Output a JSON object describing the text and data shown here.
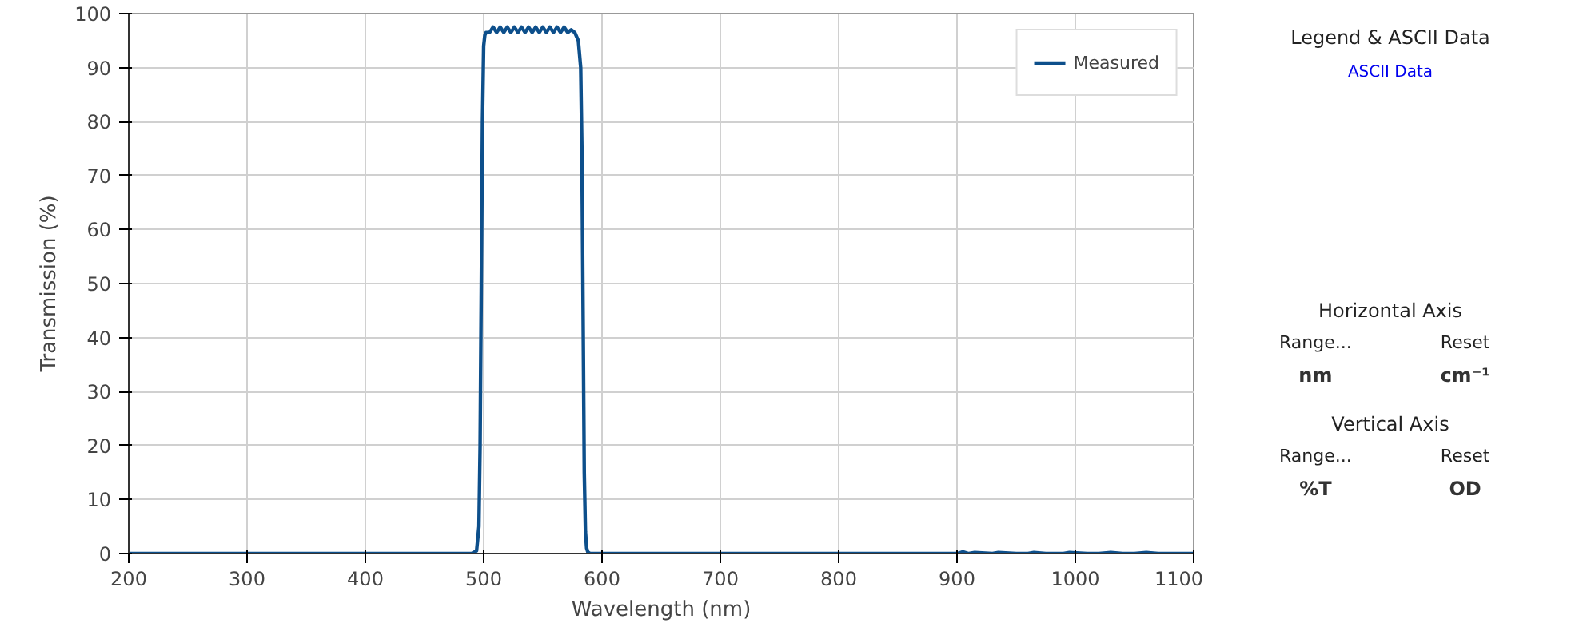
{
  "chart_data": [
    {
      "type": "line",
      "xlabel": "Wavelength (nm)",
      "ylabel": "Transmission (%)",
      "xlim": [
        200,
        1100
      ],
      "xticks": [
        200,
        300,
        400,
        500,
        600,
        700,
        800,
        900,
        1000,
        1100
      ],
      "ylim": [
        0,
        100
      ],
      "yticks": [
        0,
        10,
        20,
        30,
        40,
        50,
        60,
        70,
        80,
        90,
        100
      ],
      "grid": true,
      "legend": "top right",
      "series": [
        {
          "name": "Measured",
          "color": "#0d4f8b",
          "x": [
            200,
            300,
            400,
            480,
            490,
            494,
            496,
            497,
            498,
            499,
            500,
            501,
            502,
            505,
            508,
            511,
            514,
            517,
            520,
            523,
            526,
            529,
            532,
            535,
            538,
            541,
            544,
            547,
            550,
            553,
            556,
            559,
            562,
            565,
            568,
            571,
            574,
            577,
            580,
            582,
            583,
            584,
            585,
            586,
            587,
            588,
            590,
            600,
            700,
            800,
            880,
            900,
            905,
            910,
            915,
            930,
            935,
            950,
            960,
            965,
            975,
            990,
            995,
            1010,
            1020,
            1030,
            1040,
            1050,
            1060,
            1070,
            1100
          ],
          "values": [
            0,
            0,
            0,
            0,
            0,
            0.5,
            5,
            20,
            50,
            80,
            94,
            96,
            96.5,
            96.5,
            97.5,
            96.5,
            97.5,
            96.5,
            97.5,
            96.5,
            97.5,
            96.5,
            97.5,
            96.5,
            97.5,
            96.5,
            97.5,
            96.5,
            97.5,
            96.5,
            97.5,
            96.5,
            97.5,
            96.5,
            97.5,
            96.5,
            97,
            96.5,
            95,
            90,
            75,
            45,
            15,
            4,
            1,
            0.3,
            0,
            0,
            0,
            0,
            0,
            0,
            0.3,
            0,
            0.2,
            0,
            0.2,
            0,
            0,
            0.2,
            0,
            0,
            0.2,
            0,
            0,
            0.2,
            0,
            0,
            0.2,
            0,
            0
          ]
        }
      ]
    },
    {
      "type": "other",
      "annotations": [
        "Legend & ASCII Data",
        "ASCII Data",
        "Horizontal Axis",
        "Range...",
        "Reset",
        "nm",
        "cm⁻¹",
        "Vertical Axis",
        "Range...",
        "Reset",
        "%T",
        "OD"
      ]
    }
  ]
}
